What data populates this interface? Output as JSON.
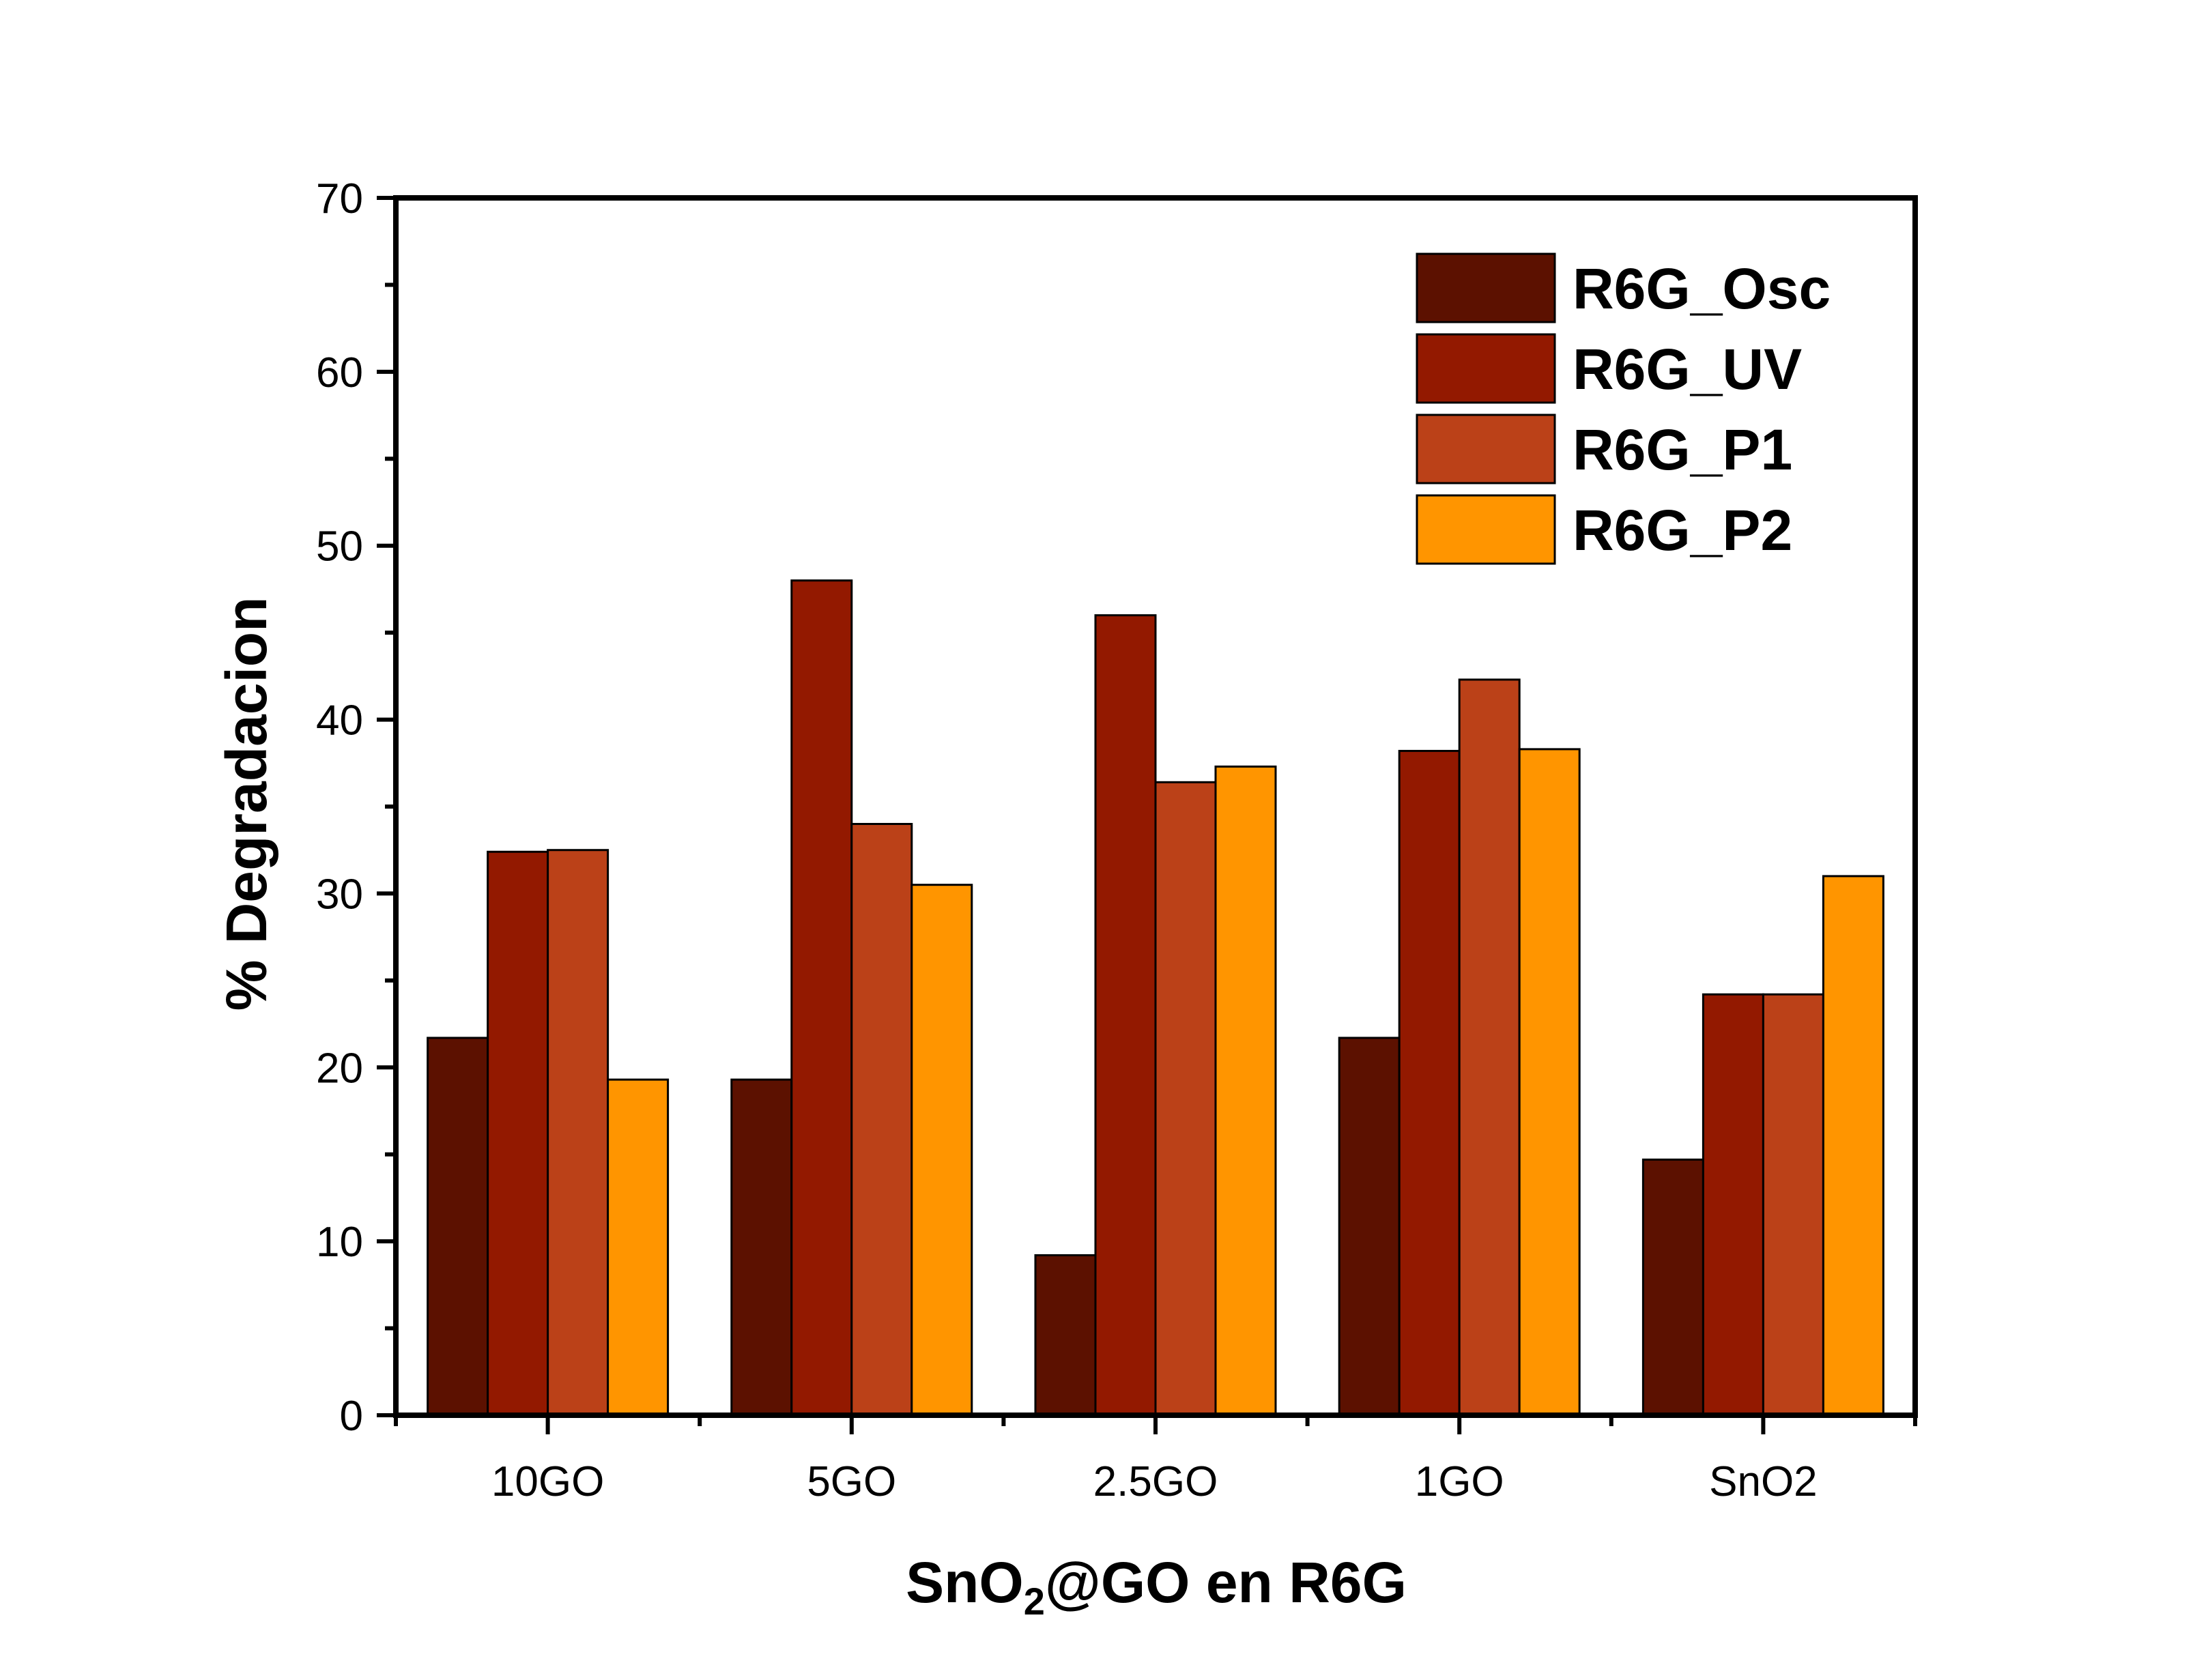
{
  "chart_data": {
    "type": "bar",
    "categories": [
      "10GO",
      "5GO",
      "2.5GO",
      "1GO",
      "SnO2"
    ],
    "series": [
      {
        "name": "R6G_Osc",
        "color": "#5c1100",
        "values": [
          21.7,
          19.3,
          9.2,
          21.7,
          14.7
        ]
      },
      {
        "name": "R6G_UV",
        "color": "#931900",
        "values": [
          32.4,
          48.0,
          46.0,
          38.2,
          24.2
        ]
      },
      {
        "name": "R6G_P1",
        "color": "#bb4118",
        "values": [
          32.5,
          34.0,
          36.4,
          42.3,
          24.2
        ]
      },
      {
        "name": "R6G_P2",
        "color": "#ff9500",
        "values": [
          19.3,
          30.5,
          37.3,
          38.3,
          31.0
        ]
      }
    ],
    "yticks": [
      "0",
      "10",
      "20",
      "30",
      "40",
      "50",
      "60",
      "70"
    ],
    "ylim": [
      0,
      70
    ],
    "ylabel": "% Degradacion",
    "xlabel": {
      "before": "SnO",
      "sub": "2",
      "after": "@GO en R6G"
    },
    "title": "",
    "legend_position": "top-right",
    "grid": false
  }
}
